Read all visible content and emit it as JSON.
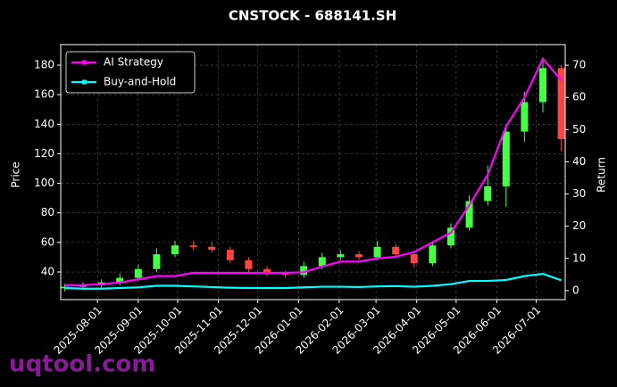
{
  "chart_data": {
    "type": "candlestick",
    "title": "CNSTOCK - 688141.SH",
    "y_label": "Price",
    "y2_label": "Return",
    "watermark": "uqtool.com",
    "x": [
      "2025-07-07",
      "2025-07-21",
      "2025-08-04",
      "2025-08-18",
      "2025-09-01",
      "2025-09-15",
      "2025-09-29",
      "2025-10-13",
      "2025-10-27",
      "2025-11-10",
      "2025-11-24",
      "2025-12-08",
      "2025-12-22",
      "2026-01-05",
      "2026-01-19",
      "2026-02-02",
      "2026-02-16",
      "2026-03-02",
      "2026-03-16",
      "2026-03-30",
      "2026-04-13",
      "2026-04-27",
      "2026-05-11",
      "2026-05-25",
      "2026-06-08",
      "2026-06-22",
      "2026-07-06",
      "2026-07-20"
    ],
    "open": [
      29,
      30,
      31,
      33,
      36,
      42,
      52,
      58,
      57,
      55,
      48,
      42,
      39,
      38,
      44,
      50,
      52,
      50,
      57,
      52,
      46,
      58,
      70,
      88,
      98,
      135,
      155,
      178
    ],
    "high": [
      32,
      33,
      35,
      39,
      45,
      56,
      61,
      61,
      60,
      57,
      50,
      44,
      41,
      47,
      53,
      55,
      54,
      61,
      59,
      54,
      61,
      73,
      92,
      112,
      140,
      162,
      185,
      180
    ],
    "low": [
      27,
      28,
      29,
      31,
      34,
      40,
      50,
      55,
      53,
      46,
      40,
      37,
      36,
      36,
      42,
      48,
      48,
      48,
      50,
      43,
      44,
      56,
      68,
      85,
      84,
      128,
      148,
      122
    ],
    "close": [
      30,
      31,
      33,
      36,
      42,
      52,
      58,
      57,
      55,
      48,
      42,
      39,
      38,
      44,
      50,
      52,
      50,
      57,
      52,
      46,
      58,
      70,
      88,
      98,
      135,
      155,
      178,
      130
    ],
    "up_color": "#44ff44",
    "down_color": "#ff4444",
    "series": [
      {
        "name": "AI Strategy",
        "color": "#ff00ff",
        "axis": "y2",
        "values": [
          1.7,
          1.7,
          2,
          2.5,
          3.5,
          4.5,
          4.5,
          5.5,
          5.5,
          5.5,
          5.5,
          5.5,
          5.5,
          5.7,
          7.5,
          9,
          9,
          10,
          10.5,
          12,
          15,
          18,
          26.5,
          36,
          51,
          60,
          72,
          65.3
        ]
      },
      {
        "name": "Buy-and-Hold",
        "color": "#00ffff",
        "axis": "y2",
        "values": [
          0.8,
          0.6,
          0.6,
          0.8,
          1,
          1.5,
          1.5,
          1.3,
          1.1,
          0.9,
          0.8,
          0.8,
          0.8,
          1,
          1.2,
          1.2,
          1.1,
          1.3,
          1.4,
          1.2,
          1.5,
          2,
          3,
          3,
          3.3,
          4.5,
          5.2,
          3.2
        ]
      }
    ],
    "xlim": [
      "2025-07-04",
      "2026-07-23"
    ],
    "xticks": [
      "2025-08-01",
      "2025-09-01",
      "2025-10-01",
      "2025-11-01",
      "2025-12-01",
      "2026-01-01",
      "2026-02-01",
      "2026-03-01",
      "2026-04-01",
      "2026-05-01",
      "2026-06-01",
      "2026-07-01"
    ],
    "ylim": [
      21.3,
      193.9
    ],
    "yticks": [
      40,
      60,
      80,
      100,
      120,
      140,
      160,
      180
    ],
    "y2lim": [
      -2.8,
      76.4
    ],
    "y2ticks": [
      0,
      10,
      20,
      30,
      40,
      50,
      60,
      70
    ],
    "grid": true,
    "legend": "upper left"
  }
}
